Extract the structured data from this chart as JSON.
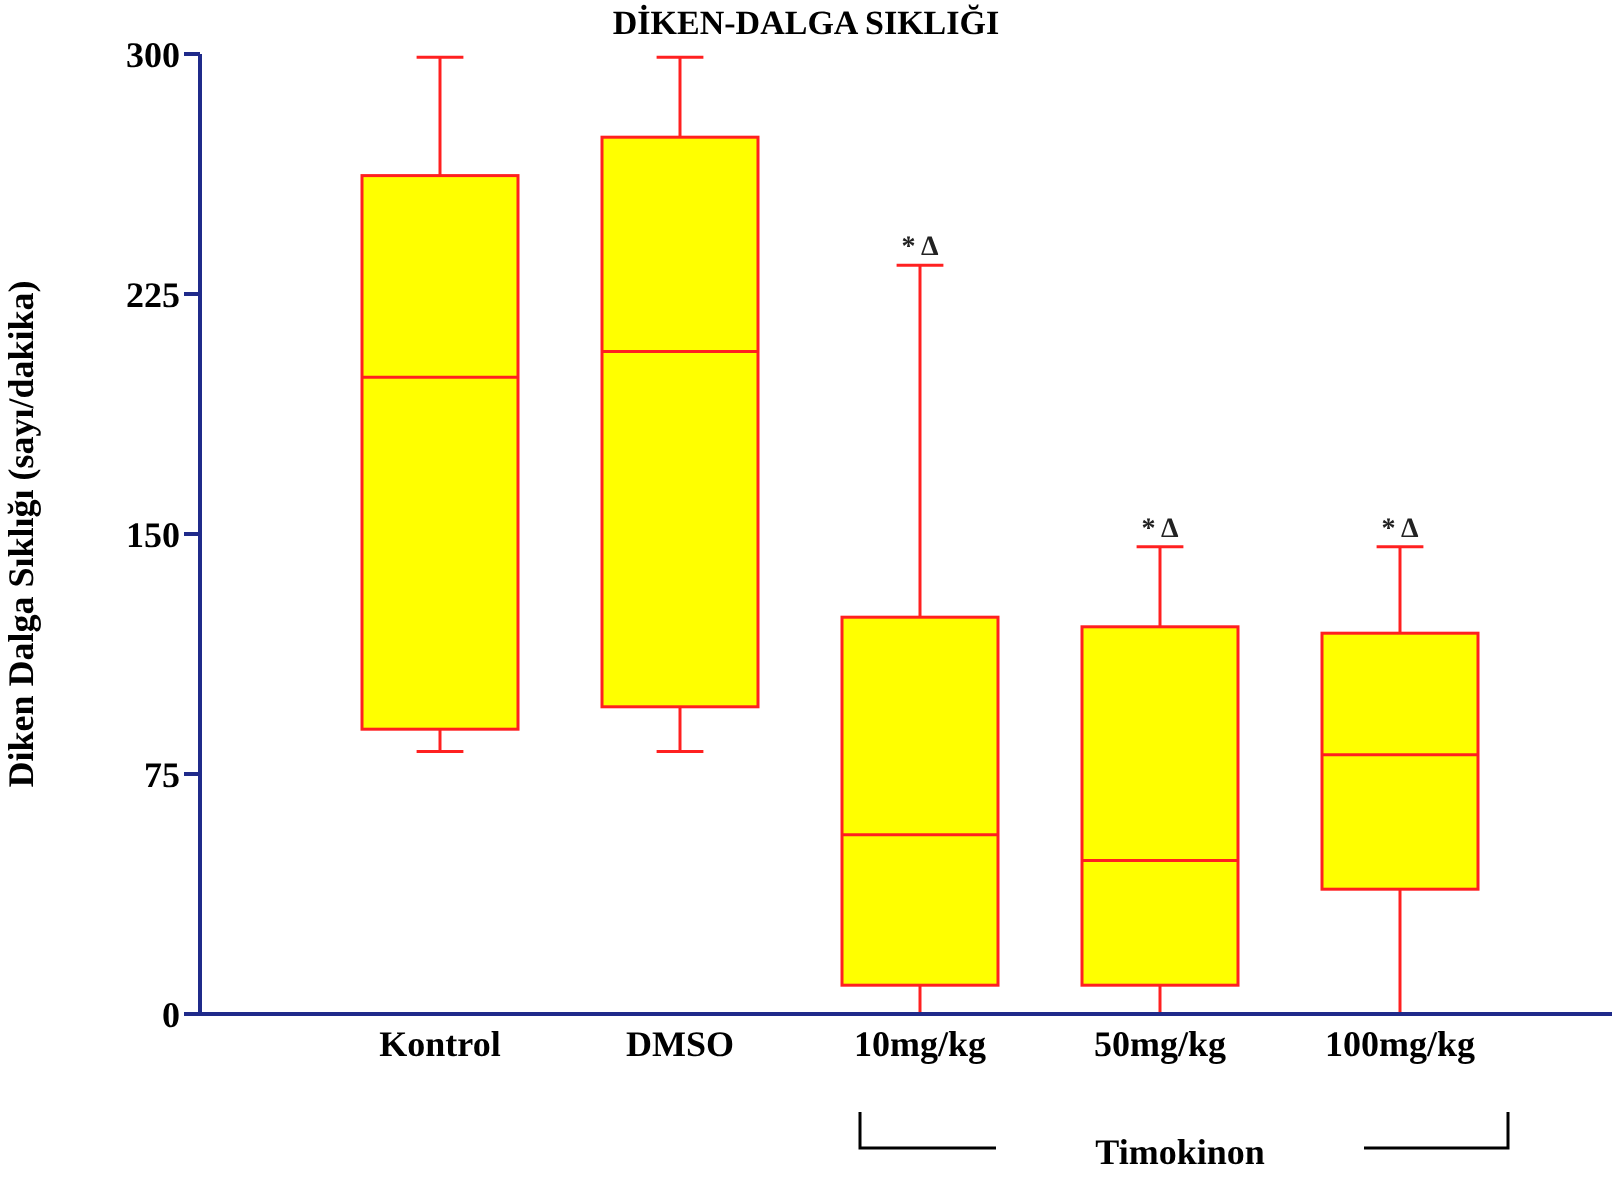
{
  "chart_data": {
    "type": "box",
    "title": "DİKEN-DALGA SIKLIĞI",
    "ylabel": "Diken  Dalga Sıklığı (sayı/dakika)",
    "categories": [
      "Kontrol",
      "DMSO",
      "10mg/kg",
      "50mg/kg",
      "100mg/kg"
    ],
    "color": "#ffff00",
    "boxes": [
      {
        "low": 82,
        "q1": 89,
        "median": 199,
        "q3": 262,
        "high": 299
      },
      {
        "low": 82,
        "q1": 96,
        "median": 207,
        "q3": 274,
        "high": 299
      },
      {
        "low": 0,
        "q1": 9,
        "median": 56,
        "q3": 124,
        "high": 234
      },
      {
        "low": 0,
        "q1": 9,
        "median": 48,
        "q3": 121,
        "high": 146
      },
      {
        "low": 0,
        "q1": 39,
        "median": 81,
        "q3": 119,
        "high": 146
      }
    ],
    "ylim": [
      0,
      300
    ],
    "yticks": [
      0,
      75,
      150,
      225,
      300
    ],
    "annotations": [
      {
        "text": "* Δ",
        "x": "10mg/kg",
        "y": 234
      },
      {
        "text": "* Δ",
        "x": "50mg/kg",
        "y": 146
      },
      {
        "text": "* Δ",
        "x": "100mg/kg",
        "y": 146
      },
      "Timokinon"
    ]
  }
}
